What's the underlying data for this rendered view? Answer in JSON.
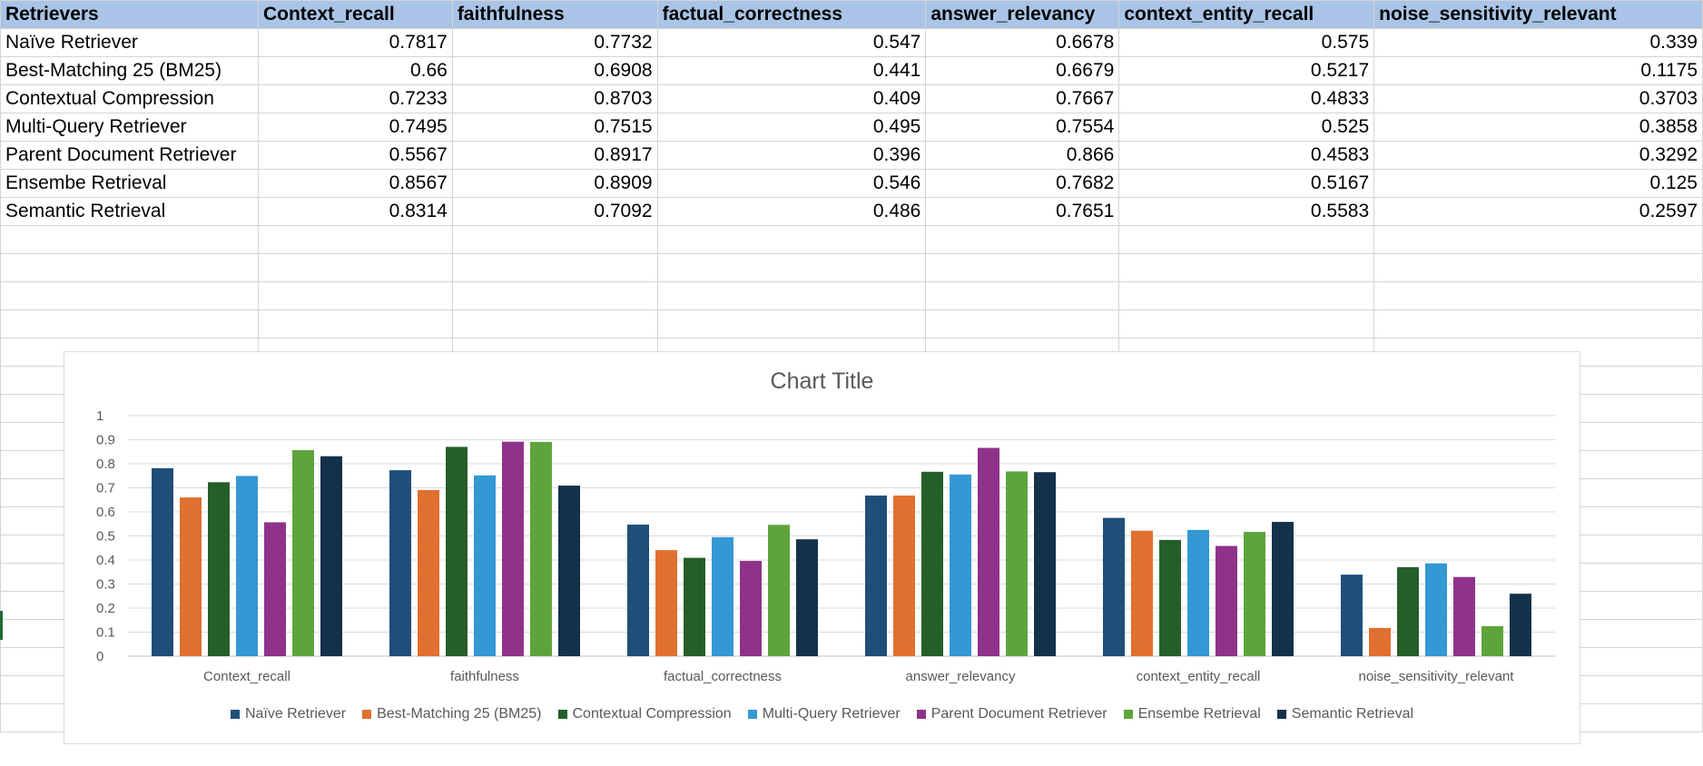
{
  "table": {
    "headers": [
      "Retrievers",
      "Context_recall",
      "faithfulness",
      "factual_correctness",
      "answer_relevancy",
      "context_entity_recall",
      "noise_sensitivity_relevant"
    ],
    "rows": [
      [
        "Naïve Retriever",
        "0.7817",
        "0.7732",
        "0.547",
        "0.6678",
        "0.575",
        "0.339"
      ],
      [
        "Best-Matching 25 (BM25)",
        "0.66",
        "0.6908",
        "0.441",
        "0.6679",
        "0.5217",
        "0.1175"
      ],
      [
        "Contextual Compression",
        "0.7233",
        "0.8703",
        "0.409",
        "0.7667",
        "0.4833",
        "0.3703"
      ],
      [
        "Multi-Query Retriever",
        "0.7495",
        "0.7515",
        "0.495",
        "0.7554",
        "0.525",
        "0.3858"
      ],
      [
        "Parent Document Retriever",
        "0.5567",
        "0.8917",
        "0.396",
        "0.866",
        "0.4583",
        "0.3292"
      ],
      [
        "Ensembe Retrieval",
        "0.8567",
        "0.8909",
        "0.546",
        "0.7682",
        "0.5167",
        "0.125"
      ],
      [
        "Semantic Retrieval",
        "0.8314",
        "0.7092",
        "0.486",
        "0.7651",
        "0.5583",
        "0.2597"
      ]
    ]
  },
  "chart_data": {
    "type": "bar",
    "title": "Chart Title",
    "categories": [
      "Context_recall",
      "faithfulness",
      "factual_correctness",
      "answer_relevancy",
      "context_entity_recall",
      "noise_sensitivity_relevant"
    ],
    "series": [
      {
        "name": "Naïve Retriever",
        "color": "#1f4e79",
        "values": [
          0.7817,
          0.7732,
          0.547,
          0.6678,
          0.575,
          0.339
        ]
      },
      {
        "name": "Best-Matching 25 (BM25)",
        "color": "#e07030",
        "values": [
          0.66,
          0.6908,
          0.441,
          0.6679,
          0.5217,
          0.1175
        ]
      },
      {
        "name": "Contextual Compression",
        "color": "#265e2a",
        "values": [
          0.7233,
          0.8703,
          0.409,
          0.7667,
          0.4833,
          0.3703
        ]
      },
      {
        "name": "Multi-Query Retriever",
        "color": "#3498d4",
        "values": [
          0.7495,
          0.7515,
          0.495,
          0.7554,
          0.525,
          0.3858
        ]
      },
      {
        "name": "Parent Document Retriever",
        "color": "#8e3389",
        "values": [
          0.5567,
          0.8917,
          0.396,
          0.866,
          0.4583,
          0.3292
        ]
      },
      {
        "name": "Ensembe Retrieval",
        "color": "#5ea43c",
        "values": [
          0.8567,
          0.8909,
          0.546,
          0.7682,
          0.5167,
          0.125
        ]
      },
      {
        "name": "Semantic Retrieval",
        "color": "#14314a",
        "values": [
          0.8314,
          0.7092,
          0.486,
          0.7651,
          0.5583,
          0.2597
        ]
      }
    ],
    "ylim": [
      0,
      1
    ],
    "yticks": [
      "0",
      "0.1",
      "0.2",
      "0.3",
      "0.4",
      "0.5",
      "0.6",
      "0.7",
      "0.8",
      "0.9",
      "1"
    ],
    "grid": true,
    "legend_position": "bottom"
  }
}
